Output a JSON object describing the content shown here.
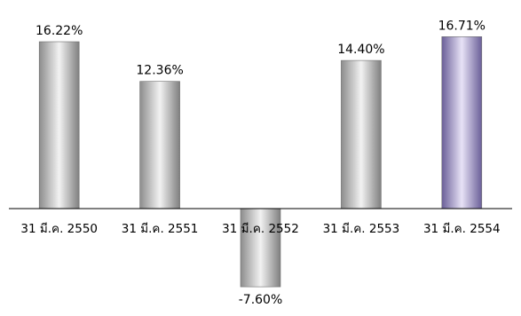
{
  "chart_data": {
    "type": "bar",
    "categories": [
      "31 มี.ค. 2550",
      "31 มี.ค. 2551",
      "31 มี.ค. 2552",
      "31 มี.ค. 2553",
      "31 มี.ค. 2554"
    ],
    "values": [
      16.22,
      12.36,
      -7.6,
      14.4,
      16.71
    ],
    "data_labels": [
      "16.22%",
      "12.36%",
      "-7.60%",
      "14.40%",
      "16.71%"
    ],
    "title": "",
    "xlabel": "",
    "ylabel": "",
    "ylim": [
      -8.5,
      18.3
    ],
    "grid": false,
    "legend": "none",
    "bar_style": "cylinder gradient",
    "colors": {
      "default": [
        "#8c8c8c",
        "#f2f2f2",
        "#7f7f7f"
      ],
      "highlight": [
        "#6a5f98",
        "#e7e2f6",
        "#6a5f98"
      ],
      "axis": "#000000",
      "text": "#000000"
    },
    "highlight_index": 4
  }
}
